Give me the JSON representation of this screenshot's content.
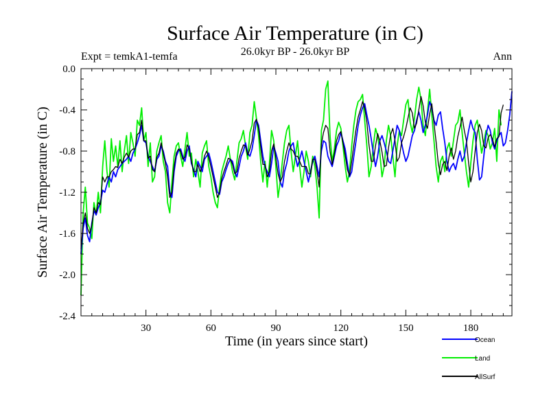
{
  "chart_data": {
    "type": "line",
    "title": "Surface Air Temperature (in C)",
    "subtitle": "26.0kyr BP - 26.0kyr BP",
    "left_label": "Expt = temkA1-temfa",
    "right_label": "Ann",
    "xlabel": "Time (in years since start)",
    "ylabel": "Surface Air Temperature (in C)",
    "xlim": [
      0,
      199
    ],
    "ylim": [
      -2.4,
      0.0
    ],
    "x_ticks": [
      30,
      60,
      90,
      120,
      150,
      180
    ],
    "x_tick_labels": [
      "30",
      "60",
      "90",
      "120",
      "150",
      "180"
    ],
    "y_ticks": [
      0.0,
      -0.4,
      -0.8,
      -1.2,
      -1.6,
      -2.0,
      -2.4
    ],
    "y_tick_labels": [
      "0.0",
      "-0.4",
      "-0.8",
      "-1.2",
      "-1.6",
      "-2.0",
      "-2.4"
    ],
    "grid": false,
    "legend_position": "bottom-right",
    "x_start": 0,
    "x_step": 1,
    "series": [
      {
        "name": "Ocean",
        "color": "#0000ff",
        "values": [
          -1.8,
          -1.55,
          -1.45,
          -1.62,
          -1.68,
          -1.5,
          -1.38,
          -1.42,
          -1.35,
          -1.3,
          -1.18,
          -1.2,
          -1.12,
          -1.05,
          -1.1,
          -1.0,
          -1.05,
          -0.98,
          -0.95,
          -0.92,
          -0.9,
          -0.88,
          -0.85,
          -0.9,
          -0.82,
          -0.78,
          -0.72,
          -0.65,
          -0.55,
          -0.7,
          -0.72,
          -0.85,
          -0.9,
          -0.95,
          -1.0,
          -0.88,
          -0.85,
          -0.75,
          -0.8,
          -0.9,
          -0.95,
          -1.2,
          -1.25,
          -1.0,
          -0.85,
          -0.8,
          -0.78,
          -0.85,
          -0.9,
          -0.8,
          -0.75,
          -0.92,
          -0.98,
          -1.05,
          -0.9,
          -0.95,
          -1.0,
          -0.88,
          -0.85,
          -0.82,
          -0.9,
          -1.0,
          -1.1,
          -1.2,
          -1.22,
          -1.1,
          -1.05,
          -0.98,
          -0.92,
          -0.88,
          -0.9,
          -1.0,
          -1.05,
          -0.95,
          -0.85,
          -0.8,
          -0.72,
          -0.82,
          -0.85,
          -0.78,
          -0.65,
          -0.5,
          -0.55,
          -0.7,
          -0.85,
          -0.95,
          -1.0,
          -1.05,
          -0.92,
          -0.75,
          -0.82,
          -0.9,
          -1.1,
          -1.15,
          -1.0,
          -0.92,
          -0.8,
          -0.75,
          -0.72,
          -0.85,
          -0.95,
          -0.88,
          -0.8,
          -0.9,
          -1.0,
          -1.1,
          -1.0,
          -0.9,
          -0.85,
          -0.95,
          -1.05,
          -0.8,
          -0.7,
          -0.72,
          -0.85,
          -0.9,
          -0.95,
          -0.85,
          -0.75,
          -0.7,
          -0.62,
          -0.7,
          -0.78,
          -0.92,
          -1.05,
          -1.0,
          -0.85,
          -0.7,
          -0.55,
          -0.45,
          -0.38,
          -0.34,
          -0.45,
          -0.55,
          -0.68,
          -0.82,
          -0.95,
          -0.85,
          -0.7,
          -0.65,
          -0.72,
          -0.8,
          -0.9,
          -0.92,
          -0.8,
          -0.68,
          -0.55,
          -0.6,
          -0.72,
          -0.82,
          -0.9,
          -0.85,
          -0.75,
          -0.65,
          -0.6,
          -0.5,
          -0.42,
          -0.5,
          -0.62,
          -0.55,
          -0.45,
          -0.32,
          -0.38,
          -0.5,
          -0.55,
          -0.45,
          -0.42,
          -0.58,
          -0.72,
          -0.9,
          -1.0,
          -0.95,
          -0.92,
          -0.98,
          -0.88,
          -0.8,
          -0.9,
          -0.85,
          -0.72,
          -0.6,
          -0.5,
          -0.58,
          -0.62,
          -0.88,
          -1.08,
          -1.05,
          -0.85,
          -0.65,
          -0.55,
          -0.6,
          -0.72,
          -0.78,
          -0.7,
          -0.65,
          -0.62,
          -0.75,
          -0.72,
          -0.6,
          -0.45,
          -0.22
        ]
      },
      {
        "name": "Land",
        "color": "#00ee00",
        "values": [
          -2.2,
          -1.4,
          -1.15,
          -1.5,
          -1.55,
          -1.65,
          -1.3,
          -1.42,
          -1.2,
          -1.4,
          -0.95,
          -0.7,
          -1.0,
          -1.15,
          -0.68,
          -0.9,
          -0.75,
          -0.95,
          -0.7,
          -1.0,
          -0.8,
          -0.65,
          -0.92,
          -0.62,
          -0.72,
          -0.85,
          -0.5,
          -0.55,
          -0.38,
          -0.7,
          -0.62,
          -0.95,
          -0.72,
          -1.1,
          -1.05,
          -0.8,
          -0.72,
          -0.65,
          -0.9,
          -1.0,
          -1.3,
          -1.4,
          -1.1,
          -0.85,
          -0.75,
          -0.72,
          -0.85,
          -0.95,
          -0.78,
          -0.62,
          -0.85,
          -0.82,
          -1.05,
          -0.88,
          -1.0,
          -1.15,
          -0.82,
          -0.75,
          -0.7,
          -0.95,
          -1.05,
          -1.2,
          -1.3,
          -1.35,
          -1.15,
          -1.0,
          -0.92,
          -0.85,
          -0.75,
          -0.88,
          -1.0,
          -1.08,
          -0.9,
          -0.72,
          -0.68,
          -0.6,
          -0.75,
          -0.88,
          -0.62,
          -0.55,
          -0.32,
          -0.48,
          -0.65,
          -0.9,
          -1.1,
          -0.9,
          -1.15,
          -0.92,
          -0.6,
          -0.7,
          -0.95,
          -1.25,
          -1.1,
          -0.9,
          -0.72,
          -0.6,
          -0.55,
          -0.8,
          -1.0,
          -0.85,
          -0.7,
          -0.95,
          -1.15,
          -1.0,
          -0.8,
          -0.9,
          -1.05,
          -0.85,
          -0.95,
          -1.15,
          -1.45,
          -0.6,
          -0.5,
          -0.2,
          -0.12,
          -0.65,
          -0.9,
          -0.78,
          -0.6,
          -0.52,
          -0.58,
          -0.75,
          -0.95,
          -1.1,
          -1.0,
          -0.75,
          -0.55,
          -0.4,
          -0.32,
          -0.3,
          -0.25,
          -0.5,
          -0.75,
          -1.05,
          -0.95,
          -0.75,
          -0.58,
          -0.65,
          -0.82,
          -1.05,
          -0.95,
          -0.7,
          -0.55,
          -0.65,
          -0.85,
          -1.05,
          -0.75,
          -0.6,
          -0.65,
          -0.5,
          -0.35,
          -0.3,
          -0.52,
          -0.62,
          -0.48,
          -0.3,
          -0.18,
          -0.3,
          -0.55,
          -0.65,
          -0.42,
          -0.2,
          -0.45,
          -0.7,
          -0.95,
          -1.1,
          -0.9,
          -0.85,
          -1.0,
          -0.78,
          -0.72,
          -0.85,
          -0.7,
          -0.55,
          -0.52,
          -0.4,
          -0.62,
          -0.82,
          -1.0,
          -1.15,
          -0.92,
          -0.7,
          -0.55,
          -0.5,
          -0.65,
          -0.82,
          -0.72,
          -0.6,
          -0.65,
          -0.78,
          -0.72,
          -0.58,
          -0.9,
          -0.4,
          -0.55
        ]
      },
      {
        "name": "AllSurf",
        "color": "#000000",
        "values": [
          -1.75,
          -1.5,
          -1.4,
          -1.55,
          -1.6,
          -1.52,
          -1.35,
          -1.4,
          -1.3,
          -1.32,
          -1.05,
          -1.1,
          -1.05,
          -1.05,
          -1.0,
          -0.98,
          -0.95,
          -0.96,
          -0.88,
          -0.92,
          -0.86,
          -0.82,
          -0.86,
          -0.8,
          -0.78,
          -0.78,
          -0.64,
          -0.62,
          -0.5,
          -0.7,
          -0.7,
          -0.87,
          -0.85,
          -0.98,
          -1.0,
          -0.86,
          -0.82,
          -0.72,
          -0.82,
          -0.92,
          -1.05,
          -1.25,
          -1.2,
          -0.95,
          -0.82,
          -0.78,
          -0.8,
          -0.88,
          -0.86,
          -0.74,
          -0.78,
          -0.9,
          -1.0,
          -1.0,
          -0.93,
          -1.0,
          -0.95,
          -0.85,
          -0.8,
          -0.86,
          -0.95,
          -1.05,
          -1.15,
          -1.25,
          -1.2,
          -1.07,
          -1.0,
          -0.94,
          -0.87,
          -0.88,
          -0.93,
          -1.02,
          -1.0,
          -0.87,
          -0.8,
          -0.74,
          -0.75,
          -0.84,
          -0.78,
          -0.7,
          -0.53,
          -0.49,
          -0.58,
          -0.76,
          -0.93,
          -0.93,
          -1.05,
          -1.0,
          -0.8,
          -0.73,
          -0.87,
          -1.02,
          -1.1,
          -1.05,
          -0.9,
          -0.8,
          -0.72,
          -0.78,
          -0.8,
          -0.85,
          -0.85,
          -0.9,
          -0.95,
          -0.95,
          -0.95,
          -1.02,
          -1.02,
          -0.88,
          -0.88,
          -1.0,
          -1.15,
          -0.73,
          -0.62,
          -0.55,
          -0.58,
          -0.8,
          -0.93,
          -0.83,
          -0.7,
          -0.64,
          -0.61,
          -0.72,
          -0.84,
          -0.98,
          -1.04,
          -0.9,
          -0.74,
          -0.59,
          -0.47,
          -0.4,
          -0.32,
          -0.38,
          -0.52,
          -0.74,
          -0.9,
          -0.9,
          -0.75,
          -0.63,
          -0.7,
          -0.81,
          -0.95,
          -0.94,
          -0.77,
          -0.64,
          -0.58,
          -0.7,
          -0.9,
          -0.86,
          -0.72,
          -0.66,
          -0.58,
          -0.48,
          -0.38,
          -0.43,
          -0.58,
          -0.53,
          -0.4,
          -0.27,
          -0.36,
          -0.52,
          -0.58,
          -0.44,
          -0.34,
          -0.53,
          -0.71,
          -0.92,
          -1.03,
          -0.93,
          -0.9,
          -0.99,
          -0.85,
          -0.77,
          -0.88,
          -0.8,
          -0.66,
          -0.57,
          -0.47,
          -0.6,
          -0.7,
          -0.92,
          -1.1,
          -1.0,
          -0.8,
          -0.62,
          -0.54,
          -0.6,
          -0.75,
          -0.77,
          -0.67,
          -0.64,
          -0.68,
          -0.76,
          -0.68,
          -0.66,
          -0.43,
          -0.35
        ]
      }
    ]
  }
}
